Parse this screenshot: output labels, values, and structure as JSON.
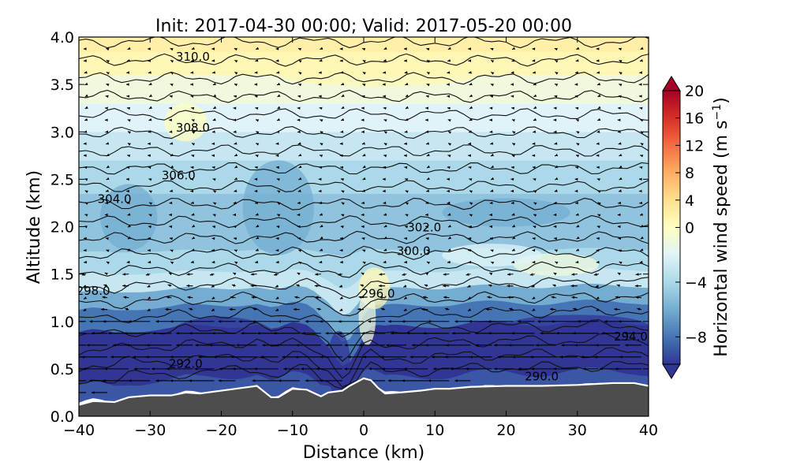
{
  "chart_data": {
    "type": "heatmap",
    "title": "Init: 2017-04-30 00:00; Valid: 2017-05-20 00:00",
    "xlabel": "Distance (km)",
    "ylabel": "Altitude (km)",
    "xlim": [
      -40,
      40
    ],
    "ylim": [
      0.0,
      4.0
    ],
    "xticks": [
      "−40",
      "−30",
      "−20",
      "−10",
      "0",
      "10",
      "20",
      "30",
      "40"
    ],
    "yticks": [
      "0.0",
      "0.5",
      "1.0",
      "1.5",
      "2.0",
      "2.5",
      "3.0",
      "3.5",
      "4.0"
    ],
    "colorbar": {
      "label": "Horizontal wind speed (m s",
      "label_sup": "−1",
      "label_end": ")",
      "range": [
        -10,
        20
      ],
      "ticks": [
        "20",
        "16",
        "12",
        "8",
        "4",
        "0",
        "−4",
        "−8"
      ],
      "extend": "both"
    },
    "contour_labels": [
      {
        "text": "310.0",
        "x": -24,
        "y": 3.8
      },
      {
        "text": "308.0",
        "x": -24,
        "y": 3.05
      },
      {
        "text": "306.0",
        "x": -26,
        "y": 2.55
      },
      {
        "text": "304.0",
        "x": -35,
        "y": 2.3
      },
      {
        "text": "302.0",
        "x": 8.5,
        "y": 2.0
      },
      {
        "text": "300.0",
        "x": 7,
        "y": 1.75
      },
      {
        "text": "298.0",
        "x": -38,
        "y": 1.33
      },
      {
        "text": "296.0",
        "x": 2,
        "y": 1.3
      },
      {
        "text": "294.0",
        "x": 37.5,
        "y": 0.85
      },
      {
        "text": "292.0",
        "x": -25,
        "y": 0.56
      },
      {
        "text": "290.0",
        "x": 25,
        "y": 0.43
      }
    ],
    "theta_levels": [
      290.0,
      291.0,
      292.0,
      293.0,
      294.0,
      295.0,
      296.0,
      297.0,
      298.0,
      299.0,
      300.0,
      301.0,
      302.0,
      303.0,
      304.0,
      305.0,
      306.0,
      307.0,
      308.0,
      309.0,
      310.0
    ],
    "terrain": [
      {
        "x": -40,
        "z": 0.12
      },
      {
        "x": -38,
        "z": 0.16
      },
      {
        "x": -35,
        "z": 0.15
      },
      {
        "x": -33,
        "z": 0.2
      },
      {
        "x": -30,
        "z": 0.22
      },
      {
        "x": -27,
        "z": 0.22
      },
      {
        "x": -25,
        "z": 0.25
      },
      {
        "x": -23,
        "z": 0.24
      },
      {
        "x": -20,
        "z": 0.27
      },
      {
        "x": -17,
        "z": 0.3
      },
      {
        "x": -15,
        "z": 0.32
      },
      {
        "x": -14,
        "z": 0.26
      },
      {
        "x": -13,
        "z": 0.2
      },
      {
        "x": -12,
        "z": 0.2
      },
      {
        "x": -10,
        "z": 0.29
      },
      {
        "x": -8,
        "z": 0.28
      },
      {
        "x": -6,
        "z": 0.21
      },
      {
        "x": -5,
        "z": 0.25
      },
      {
        "x": -3,
        "z": 0.27
      },
      {
        "x": -2,
        "z": 0.32
      },
      {
        "x": 0,
        "z": 0.4
      },
      {
        "x": 1,
        "z": 0.38
      },
      {
        "x": 2,
        "z": 0.3
      },
      {
        "x": 3,
        "z": 0.24
      },
      {
        "x": 5,
        "z": 0.25
      },
      {
        "x": 8,
        "z": 0.27
      },
      {
        "x": 10,
        "z": 0.29
      },
      {
        "x": 12,
        "z": 0.29
      },
      {
        "x": 15,
        "z": 0.31
      },
      {
        "x": 20,
        "z": 0.32
      },
      {
        "x": 25,
        "z": 0.32
      },
      {
        "x": 30,
        "z": 0.33
      },
      {
        "x": 35,
        "z": 0.35
      },
      {
        "x": 38,
        "z": 0.35
      },
      {
        "x": 40,
        "z": 0.32
      }
    ],
    "wind_bands": [
      {
        "z0": 0.0,
        "z1": 0.2,
        "value": -9
      },
      {
        "z0": 0.2,
        "z1": 0.45,
        "value": -10
      },
      {
        "z0": 0.45,
        "z1": 0.8,
        "value": -10
      },
      {
        "z0": 0.8,
        "z1": 1.05,
        "value": -8
      },
      {
        "z0": 1.05,
        "z1": 1.25,
        "value": -6
      },
      {
        "z0": 1.25,
        "z1": 1.45,
        "value": -3
      },
      {
        "z0": 1.45,
        "z1": 1.7,
        "value": -4
      },
      {
        "z0": 1.7,
        "z1": 2.0,
        "value": -5
      },
      {
        "z0": 2.0,
        "z1": 2.35,
        "value": -5
      },
      {
        "z0": 2.35,
        "z1": 2.7,
        "value": -4
      },
      {
        "z0": 2.7,
        "z1": 3.0,
        "value": -3
      },
      {
        "z0": 3.0,
        "z1": 3.3,
        "value": -2
      },
      {
        "z0": 3.3,
        "z1": 3.6,
        "value": -1
      },
      {
        "z0": 3.6,
        "z1": 3.85,
        "value": 1
      },
      {
        "z0": 3.85,
        "z1": 4.0,
        "value": 2
      }
    ],
    "features": {
      "valley_dip_x": -2.5,
      "valley_dip_depth_km": 0.45,
      "jet_core_min": -10,
      "updraft_plume_x": 0
    },
    "wind_vectors": {
      "x_spacing_km": 3,
      "z_spacing_km": 0.125,
      "dominant_direction": "westward below 1.2 km, light and variable aloft"
    }
  }
}
